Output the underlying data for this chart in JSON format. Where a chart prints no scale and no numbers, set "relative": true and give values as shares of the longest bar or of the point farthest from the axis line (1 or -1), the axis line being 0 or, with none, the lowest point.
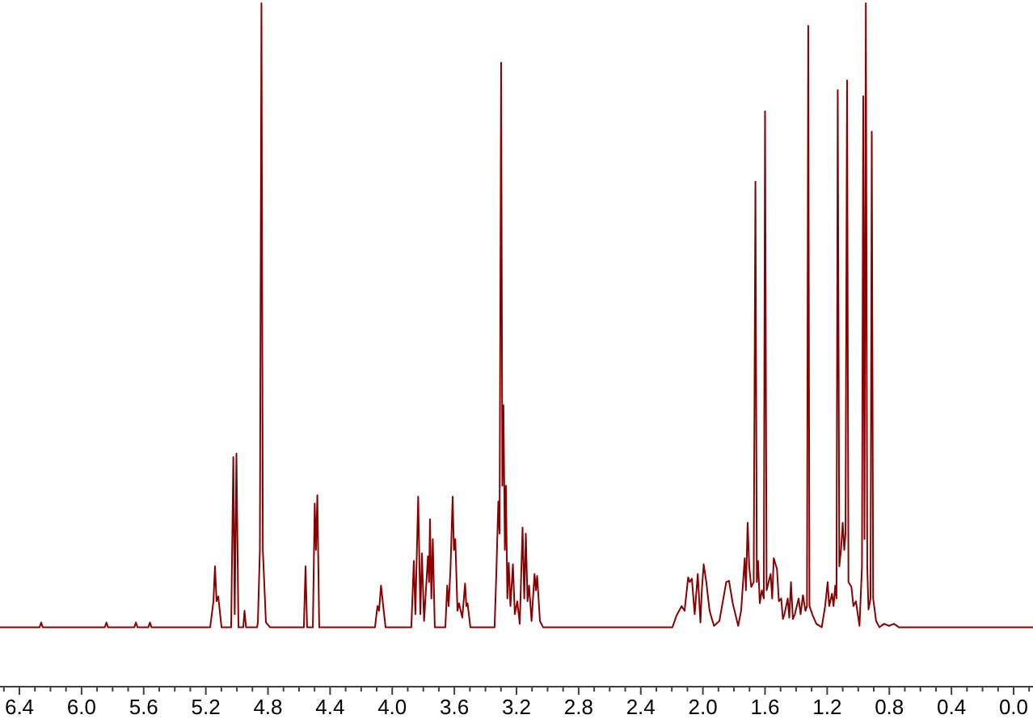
{
  "chart_data": {
    "type": "line",
    "relative": true,
    "xlim": [
      6.525,
      -0.125
    ],
    "xticks": [
      {
        "value": 6.5,
        "label": null
      },
      6.4,
      {
        "value": 6.3,
        "label": null
      },
      {
        "value": 6.2,
        "label": null
      },
      {
        "value": 6.1,
        "label": null
      },
      {
        "value": 6,
        "label": "6.0"
      },
      {
        "value": 5.9,
        "label": null
      },
      {
        "value": 5.8,
        "label": null
      },
      {
        "value": 5.7,
        "label": null
      },
      5.6,
      {
        "value": 5.5,
        "label": null
      },
      {
        "value": 5.4,
        "label": null
      },
      {
        "value": 5.3,
        "label": null
      },
      5.2,
      {
        "value": 5.1,
        "label": null
      },
      {
        "value": 5.0,
        "label": null
      },
      {
        "value": 4.9,
        "label": null
      },
      4.8,
      {
        "value": 4.7,
        "label": null
      },
      {
        "value": 4.6,
        "label": null
      },
      {
        "value": 4.5,
        "label": null
      },
      4.4,
      {
        "value": 4.3,
        "label": null
      },
      {
        "value": 4.2,
        "label": null
      },
      {
        "value": 4.1,
        "label": null
      },
      {
        "value": 4,
        "label": "4.0"
      },
      {
        "value": 3.9,
        "label": null
      },
      {
        "value": 3.8,
        "label": null
      },
      {
        "value": 3.7,
        "label": null
      },
      3.6,
      {
        "value": 3.5,
        "label": null
      },
      {
        "value": 3.4,
        "label": null
      },
      {
        "value": 3.3,
        "label": null
      },
      3.2,
      {
        "value": 3.1,
        "label": null
      },
      {
        "value": 3.0,
        "label": null
      },
      {
        "value": 2.9,
        "label": null
      },
      2.8,
      {
        "value": 2.7,
        "label": null
      },
      {
        "value": 2.6,
        "label": null
      },
      {
        "value": 2.5,
        "label": null
      },
      2.4,
      {
        "value": 2.3,
        "label": null
      },
      {
        "value": 2.2,
        "label": null
      },
      {
        "value": 2.1,
        "label": null
      },
      {
        "value": 2,
        "label": "2.0"
      },
      {
        "value": 1.9,
        "label": null
      },
      {
        "value": 1.8,
        "label": null
      },
      {
        "value": 1.7,
        "label": null
      },
      1.6,
      {
        "value": 1.5,
        "label": null
      },
      {
        "value": 1.4,
        "label": null
      },
      {
        "value": 1.3,
        "label": null
      },
      1.2,
      {
        "value": 1.1,
        "label": null
      },
      {
        "value": 1.0,
        "label": null
      },
      {
        "value": 0.9,
        "label": null
      },
      0.8,
      {
        "value": 0.7,
        "label": null
      },
      {
        "value": 0.6,
        "label": null
      },
      {
        "value": 0.5,
        "label": null
      },
      0.4,
      {
        "value": 0.3,
        "label": null
      },
      {
        "value": 0.2,
        "label": null
      },
      {
        "value": 0.1,
        "label": null
      },
      {
        "value": 0,
        "label": "0.0"
      },
      {
        "value": -0.1,
        "label": null
      }
    ],
    "x": [
      6.525,
      6.27,
      6.26,
      6.25,
      5.85,
      5.84,
      5.83,
      5.66,
      5.65,
      5.64,
      5.57,
      5.56,
      5.55,
      5.172,
      5.151,
      5.141,
      5.131,
      5.12,
      5.099,
      5.037,
      5.023,
      5.014,
      5.003,
      4.99,
      4.959,
      4.951,
      4.941,
      4.87,
      4.865,
      4.852,
      4.842,
      4.833,
      4.813,
      4.787,
      4.569,
      4.558,
      4.548,
      4.511,
      4.499,
      4.491,
      4.482,
      4.47,
      4.111,
      4.095,
      4.085,
      4.072,
      4.059,
      4.043,
      3.877,
      3.861,
      3.851,
      3.833,
      3.819,
      3.809,
      3.795,
      3.77,
      3.763,
      3.757,
      3.748,
      3.739,
      3.726,
      3.658,
      3.646,
      3.637,
      3.625,
      3.611,
      3.603,
      3.594,
      3.58,
      3.57,
      3.549,
      3.531,
      3.523,
      3.515,
      3.497,
      3.341,
      3.33,
      3.317,
      3.309,
      3.299,
      3.291,
      3.284,
      3.275,
      3.268,
      3.259,
      3.25,
      3.239,
      3.223,
      3.211,
      3.195,
      3.179,
      3.161,
      3.15,
      3.14,
      3.129,
      3.119,
      3.103,
      3.084,
      3.075,
      3.067,
      3.049,
      3.029,
      2.196,
      2.17,
      2.137,
      2.118,
      2.095,
      2.085,
      2.071,
      2.053,
      2.033,
      2.016,
      2.007,
      1.995,
      1.978,
      1.957,
      1.929,
      1.894,
      1.85,
      1.832,
      1.808,
      1.773,
      1.754,
      1.731,
      1.723,
      1.712,
      1.702,
      1.689,
      1.673,
      1.662,
      1.653,
      1.645,
      1.634,
      1.621,
      1.608,
      1.6,
      1.59,
      1.564,
      1.554,
      1.544,
      1.523,
      1.511,
      1.496,
      1.485,
      1.475,
      1.454,
      1.444,
      1.433,
      1.421,
      1.408,
      1.384,
      1.371,
      1.356,
      1.34,
      1.33,
      1.322,
      1.314,
      1.296,
      1.27,
      1.235,
      1.213,
      1.197,
      1.187,
      1.169,
      1.159,
      1.148,
      1.14,
      1.132,
      1.122,
      1.111,
      1.1,
      1.09,
      1.082,
      1.072,
      1.063,
      1.044,
      1.031,
      1.015,
      0.992,
      0.976,
      0.968,
      0.96,
      0.951,
      0.942,
      0.934,
      0.921,
      0.913,
      0.904,
      0.885,
      0.864,
      0.833,
      0.802,
      0.77,
      0.739,
      -0.125
    ],
    "series": [
      {
        "color": "#8b0000",
        "values": [
          0.087,
          0.087,
          0.094,
          0.087,
          0.087,
          0.094,
          0.087,
          0.087,
          0.094,
          0.087,
          0.087,
          0.094,
          0.087,
          0.087,
          0.125,
          0.176,
          0.125,
          0.132,
          0.087,
          0.087,
          0.336,
          0.106,
          0.341,
          0.087,
          0.087,
          0.111,
          0.087,
          0.087,
          0.094,
          0.2,
          1,
          0.2,
          0.094,
          0.087,
          0.087,
          0.176,
          0.087,
          0.087,
          0.268,
          0.2,
          0.28,
          0.087,
          0.087,
          0.118,
          0.111,
          0.148,
          0.12,
          0.087,
          0.087,
          0.184,
          0.106,
          0.278,
          0.106,
          0.195,
          0.096,
          0.191,
          0.153,
          0.245,
          0.129,
          0.216,
          0.087,
          0.087,
          0.148,
          0.118,
          0.172,
          0.278,
          0.2,
          0.216,
          0.111,
          0.122,
          0.101,
          0.151,
          0.118,
          0.122,
          0.087,
          0.087,
          0.165,
          0.271,
          0.224,
          0.913,
          0.294,
          0.412,
          0.2,
          0.294,
          0.129,
          0.181,
          0.118,
          0.179,
          0.106,
          0.125,
          0.092,
          0.233,
          0.129,
          0.224,
          0.125,
          0.148,
          0.096,
          0.165,
          0.141,
          0.162,
          0.096,
          0.087,
          0.087,
          0.104,
          0.118,
          0.111,
          0.16,
          0.153,
          0.158,
          0.106,
          0.165,
          0.094,
          0.141,
          0.179,
          0.153,
          0.111,
          0.089,
          0.096,
          0.153,
          0.155,
          0.122,
          0.089,
          0.111,
          0.188,
          0.141,
          0.24,
          0.176,
          0.146,
          0.153,
          0.739,
          0.153,
          0.184,
          0.122,
          0.141,
          0.129,
          0.842,
          0.141,
          0.165,
          0.129,
          0.188,
          0.172,
          0.125,
          0.129,
          0.099,
          0.106,
          0.129,
          0.101,
          0.153,
          0.099,
          0.106,
          0.129,
          0.106,
          0.134,
          0.111,
          0.118,
          0.967,
          0.118,
          0.106,
          0.092,
          0.087,
          0.118,
          0.153,
          0.118,
          0.136,
          0.118,
          0.148,
          0.129,
          0.873,
          0.176,
          0.2,
          0.24,
          0.2,
          0.224,
          0.887,
          0.153,
          0.146,
          0.118,
          0.125,
          0.089,
          0.176,
          0.864,
          0.216,
          1,
          0.176,
          0.113,
          0.129,
          0.812,
          0.129,
          0.096,
          0.087,
          0.092,
          0.089,
          0.092,
          0.087,
          0.087
        ]
      }
    ]
  }
}
